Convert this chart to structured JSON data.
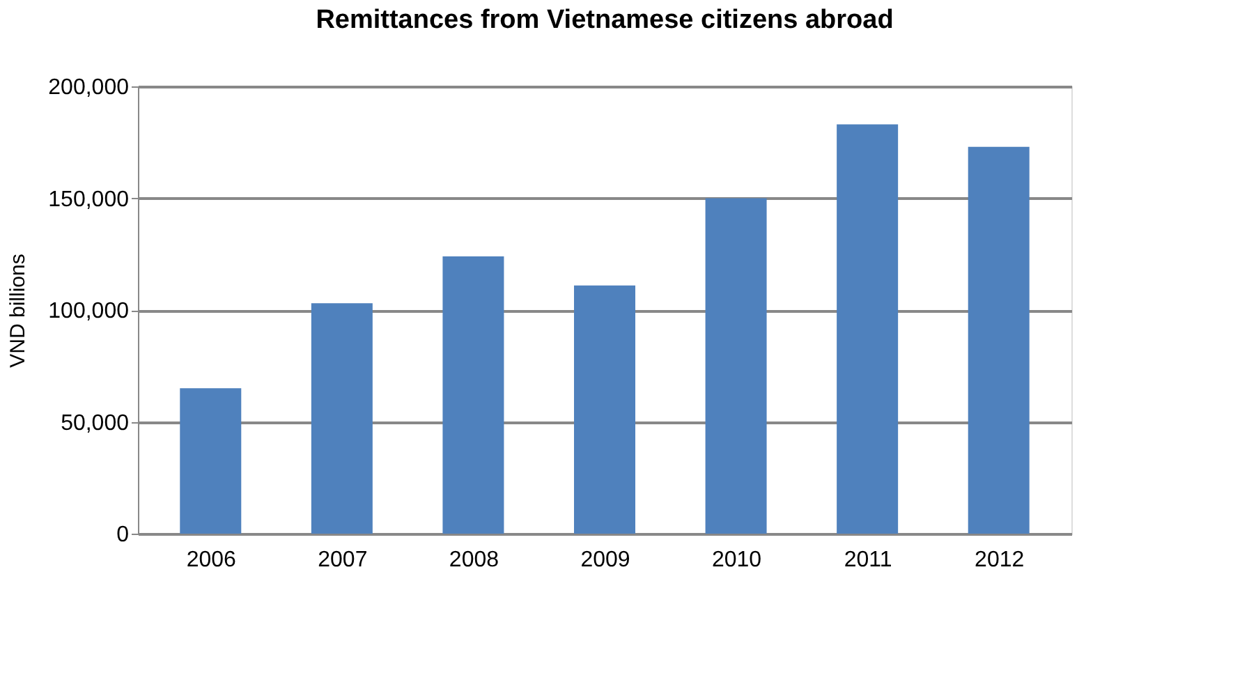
{
  "chart_data": {
    "type": "bar",
    "title": "Remittances from Vietnamese citizens abroad",
    "ylabel": "VND billions",
    "categories": [
      "2006",
      "2007",
      "2008",
      "2009",
      "2010",
      "2011",
      "2012"
    ],
    "values": [
      65000,
      103000,
      124000,
      111000,
      150000,
      183000,
      173000
    ],
    "color": "#4f81bd",
    "ylim": [
      0,
      200000
    ],
    "yticks": [
      0,
      {
        "value": 50000,
        "label": "50,000"
      },
      {
        "value": 100000,
        "label": "100,000"
      },
      {
        "value": 150000,
        "label": "150,000"
      },
      {
        "value": 200000,
        "label": "200,000"
      }
    ],
    "grid": "y"
  }
}
